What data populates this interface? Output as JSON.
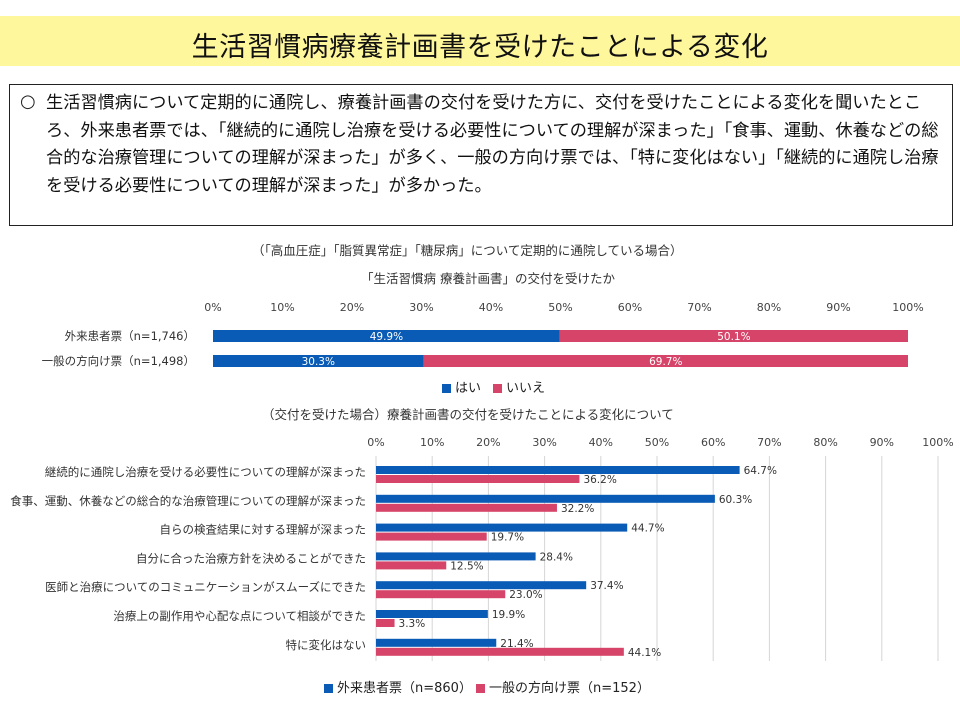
{
  "title": "生活習慣病療養計画書を受けたことによる変化",
  "summary": {
    "bullet": "○",
    "text": "生活習慣病について定期的に通院し、療養計画書の交付を受けた方に、交付を受けたことによる変化を聞いたところ、外来患者票では、「継続的に通院し治療を受ける必要性についての理解が深まった」「食事、運動、休養などの総合的な治療管理についての理解が深まった」が多く、一般の方向け票では、「特に変化はない」「継続的に通院し治療を受ける必要性についての理解が深まった」が多かった。"
  },
  "colors": {
    "blue": "#0a5bb5",
    "pink": "#d64569",
    "title_bg": "#fff79c"
  },
  "chart_data": [
    {
      "type": "bar",
      "orientation": "horizontal",
      "stacked": true,
      "title": "（「高血圧症」「脂質異常症」「糖尿病」について定期的に通院している場合）",
      "subtitle": "「生活習慣病 療養計画書」の交付を受けたか",
      "xlim": [
        0,
        100
      ],
      "x_ticks": [
        "0%",
        "10%",
        "20%",
        "30%",
        "40%",
        "50%",
        "60%",
        "70%",
        "80%",
        "90%",
        "100%"
      ],
      "categories": [
        "外来患者票（n=1,746）",
        "一般の方向け票（n=1,498）"
      ],
      "series": [
        {
          "name": "はい",
          "values": [
            49.9,
            30.3
          ],
          "labels": [
            "49.9%",
            "30.3%"
          ]
        },
        {
          "name": "いいえ",
          "values": [
            50.1,
            69.7
          ],
          "labels": [
            "50.1%",
            "69.7%"
          ]
        }
      ],
      "legend": "bottom-center"
    },
    {
      "type": "bar",
      "orientation": "horizontal",
      "title": "（交付を受けた場合）療養計画書の交付を受けたことによる変化について",
      "xlim": [
        0,
        100
      ],
      "x_ticks": [
        "0%",
        "10%",
        "20%",
        "30%",
        "40%",
        "50%",
        "60%",
        "70%",
        "80%",
        "90%",
        "100%"
      ],
      "grid": true,
      "categories": [
        "継続的に通院し治療を受ける必要性についての理解が深まった",
        "食事、運動、休養などの総合的な治療管理についての理解が深まった",
        "自らの検査結果に対する理解が深まった",
        "自分に合った治療方針を決めることができた",
        "医師と治療についてのコミュニケーションがスムーズにできた",
        "治療上の副作用や心配な点について相談ができた",
        "特に変化はない"
      ],
      "series": [
        {
          "name": "外来患者票（n=860）",
          "values": [
            64.7,
            60.3,
            44.7,
            28.4,
            37.4,
            19.9,
            21.4
          ],
          "labels": [
            "64.7%",
            "60.3%",
            "44.7%",
            "28.4%",
            "37.4%",
            "19.9%",
            "21.4%"
          ]
        },
        {
          "name": "一般の方向け票（n=152）",
          "values": [
            36.2,
            32.2,
            19.7,
            12.5,
            23.0,
            3.3,
            44.1
          ],
          "labels": [
            "36.2%",
            "32.2%",
            "19.7%",
            "12.5%",
            "23.0%",
            "3.3%",
            "44.1%"
          ]
        }
      ],
      "legend": "bottom-center"
    }
  ]
}
